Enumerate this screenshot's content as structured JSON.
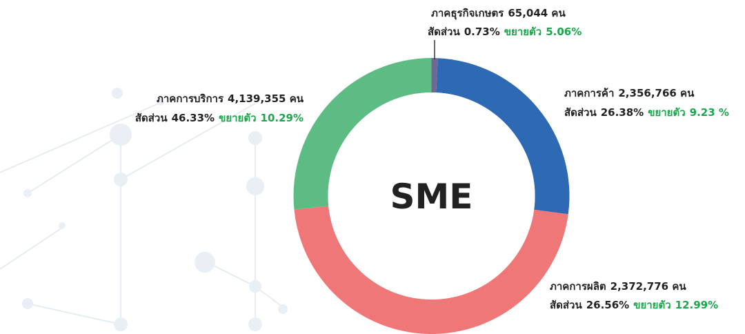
{
  "chart_data": {
    "type": "donut",
    "center_label": "SME",
    "categories": [
      "ภาคธุรกิจเกษตร",
      "ภาคการค้า",
      "ภาคการบริการ",
      "ภาคการผลิต"
    ],
    "values": [
      0.73,
      26.38,
      46.33,
      26.56
    ],
    "value_labels": [
      "0.73%",
      "26.38%",
      "46.33%",
      "26.56%"
    ],
    "colors": [
      "#6e6a94",
      "#2e69b3",
      "#f07778",
      "#5dbc83"
    ],
    "counts": [
      65044,
      2356766,
      4139355,
      2372776
    ],
    "count_labels": [
      "65,044 คน",
      "2,356,766 คน",
      "4,139,355 คน",
      "2,372,776 คน"
    ],
    "share_prefix": "สัดส่วน",
    "growth_prefix": "ขยายตัว",
    "growth": [
      5.06,
      9.23,
      10.29,
      12.99
    ],
    "growth_labels": [
      "5.06%",
      "9.23 %",
      "10.29%",
      "12.99%"
    ]
  }
}
